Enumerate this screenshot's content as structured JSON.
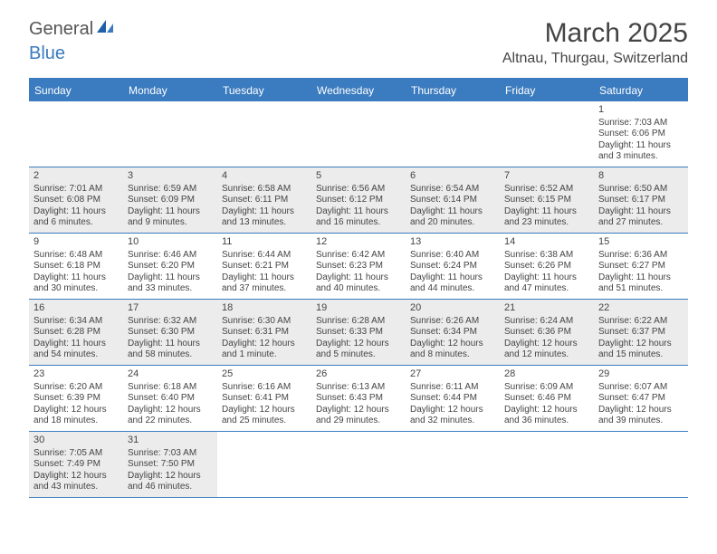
{
  "logo": {
    "general": "General",
    "blue": "Blue"
  },
  "title": "March 2025",
  "location": "Altnau, Thurgau, Switzerland",
  "colors": {
    "accent": "#3b7bbf",
    "shaded": "#ececec",
    "background": "#ffffff",
    "text": "#444444"
  },
  "weekdays": [
    "Sunday",
    "Monday",
    "Tuesday",
    "Wednesday",
    "Thursday",
    "Friday",
    "Saturday"
  ],
  "weeks": [
    [
      {
        "blank": true
      },
      {
        "blank": true
      },
      {
        "blank": true
      },
      {
        "blank": true
      },
      {
        "blank": true
      },
      {
        "blank": true
      },
      {
        "num": "1",
        "sunrise": "Sunrise: 7:03 AM",
        "sunset": "Sunset: 6:06 PM",
        "day1": "Daylight: 11 hours",
        "day2": "and 3 minutes."
      }
    ],
    [
      {
        "num": "2",
        "shaded": true,
        "sunrise": "Sunrise: 7:01 AM",
        "sunset": "Sunset: 6:08 PM",
        "day1": "Daylight: 11 hours",
        "day2": "and 6 minutes."
      },
      {
        "num": "3",
        "shaded": true,
        "sunrise": "Sunrise: 6:59 AM",
        "sunset": "Sunset: 6:09 PM",
        "day1": "Daylight: 11 hours",
        "day2": "and 9 minutes."
      },
      {
        "num": "4",
        "shaded": true,
        "sunrise": "Sunrise: 6:58 AM",
        "sunset": "Sunset: 6:11 PM",
        "day1": "Daylight: 11 hours",
        "day2": "and 13 minutes."
      },
      {
        "num": "5",
        "shaded": true,
        "sunrise": "Sunrise: 6:56 AM",
        "sunset": "Sunset: 6:12 PM",
        "day1": "Daylight: 11 hours",
        "day2": "and 16 minutes."
      },
      {
        "num": "6",
        "shaded": true,
        "sunrise": "Sunrise: 6:54 AM",
        "sunset": "Sunset: 6:14 PM",
        "day1": "Daylight: 11 hours",
        "day2": "and 20 minutes."
      },
      {
        "num": "7",
        "shaded": true,
        "sunrise": "Sunrise: 6:52 AM",
        "sunset": "Sunset: 6:15 PM",
        "day1": "Daylight: 11 hours",
        "day2": "and 23 minutes."
      },
      {
        "num": "8",
        "shaded": true,
        "sunrise": "Sunrise: 6:50 AM",
        "sunset": "Sunset: 6:17 PM",
        "day1": "Daylight: 11 hours",
        "day2": "and 27 minutes."
      }
    ],
    [
      {
        "num": "9",
        "sunrise": "Sunrise: 6:48 AM",
        "sunset": "Sunset: 6:18 PM",
        "day1": "Daylight: 11 hours",
        "day2": "and 30 minutes."
      },
      {
        "num": "10",
        "sunrise": "Sunrise: 6:46 AM",
        "sunset": "Sunset: 6:20 PM",
        "day1": "Daylight: 11 hours",
        "day2": "and 33 minutes."
      },
      {
        "num": "11",
        "sunrise": "Sunrise: 6:44 AM",
        "sunset": "Sunset: 6:21 PM",
        "day1": "Daylight: 11 hours",
        "day2": "and 37 minutes."
      },
      {
        "num": "12",
        "sunrise": "Sunrise: 6:42 AM",
        "sunset": "Sunset: 6:23 PM",
        "day1": "Daylight: 11 hours",
        "day2": "and 40 minutes."
      },
      {
        "num": "13",
        "sunrise": "Sunrise: 6:40 AM",
        "sunset": "Sunset: 6:24 PM",
        "day1": "Daylight: 11 hours",
        "day2": "and 44 minutes."
      },
      {
        "num": "14",
        "sunrise": "Sunrise: 6:38 AM",
        "sunset": "Sunset: 6:26 PM",
        "day1": "Daylight: 11 hours",
        "day2": "and 47 minutes."
      },
      {
        "num": "15",
        "sunrise": "Sunrise: 6:36 AM",
        "sunset": "Sunset: 6:27 PM",
        "day1": "Daylight: 11 hours",
        "day2": "and 51 minutes."
      }
    ],
    [
      {
        "num": "16",
        "shaded": true,
        "sunrise": "Sunrise: 6:34 AM",
        "sunset": "Sunset: 6:28 PM",
        "day1": "Daylight: 11 hours",
        "day2": "and 54 minutes."
      },
      {
        "num": "17",
        "shaded": true,
        "sunrise": "Sunrise: 6:32 AM",
        "sunset": "Sunset: 6:30 PM",
        "day1": "Daylight: 11 hours",
        "day2": "and 58 minutes."
      },
      {
        "num": "18",
        "shaded": true,
        "sunrise": "Sunrise: 6:30 AM",
        "sunset": "Sunset: 6:31 PM",
        "day1": "Daylight: 12 hours",
        "day2": "and 1 minute."
      },
      {
        "num": "19",
        "shaded": true,
        "sunrise": "Sunrise: 6:28 AM",
        "sunset": "Sunset: 6:33 PM",
        "day1": "Daylight: 12 hours",
        "day2": "and 5 minutes."
      },
      {
        "num": "20",
        "shaded": true,
        "sunrise": "Sunrise: 6:26 AM",
        "sunset": "Sunset: 6:34 PM",
        "day1": "Daylight: 12 hours",
        "day2": "and 8 minutes."
      },
      {
        "num": "21",
        "shaded": true,
        "sunrise": "Sunrise: 6:24 AM",
        "sunset": "Sunset: 6:36 PM",
        "day1": "Daylight: 12 hours",
        "day2": "and 12 minutes."
      },
      {
        "num": "22",
        "shaded": true,
        "sunrise": "Sunrise: 6:22 AM",
        "sunset": "Sunset: 6:37 PM",
        "day1": "Daylight: 12 hours",
        "day2": "and 15 minutes."
      }
    ],
    [
      {
        "num": "23",
        "sunrise": "Sunrise: 6:20 AM",
        "sunset": "Sunset: 6:39 PM",
        "day1": "Daylight: 12 hours",
        "day2": "and 18 minutes."
      },
      {
        "num": "24",
        "sunrise": "Sunrise: 6:18 AM",
        "sunset": "Sunset: 6:40 PM",
        "day1": "Daylight: 12 hours",
        "day2": "and 22 minutes."
      },
      {
        "num": "25",
        "sunrise": "Sunrise: 6:16 AM",
        "sunset": "Sunset: 6:41 PM",
        "day1": "Daylight: 12 hours",
        "day2": "and 25 minutes."
      },
      {
        "num": "26",
        "sunrise": "Sunrise: 6:13 AM",
        "sunset": "Sunset: 6:43 PM",
        "day1": "Daylight: 12 hours",
        "day2": "and 29 minutes."
      },
      {
        "num": "27",
        "sunrise": "Sunrise: 6:11 AM",
        "sunset": "Sunset: 6:44 PM",
        "day1": "Daylight: 12 hours",
        "day2": "and 32 minutes."
      },
      {
        "num": "28",
        "sunrise": "Sunrise: 6:09 AM",
        "sunset": "Sunset: 6:46 PM",
        "day1": "Daylight: 12 hours",
        "day2": "and 36 minutes."
      },
      {
        "num": "29",
        "sunrise": "Sunrise: 6:07 AM",
        "sunset": "Sunset: 6:47 PM",
        "day1": "Daylight: 12 hours",
        "day2": "and 39 minutes."
      }
    ],
    [
      {
        "num": "30",
        "shaded": true,
        "sunrise": "Sunrise: 7:05 AM",
        "sunset": "Sunset: 7:49 PM",
        "day1": "Daylight: 12 hours",
        "day2": "and 43 minutes."
      },
      {
        "num": "31",
        "shaded": true,
        "sunrise": "Sunrise: 7:03 AM",
        "sunset": "Sunset: 7:50 PM",
        "day1": "Daylight: 12 hours",
        "day2": "and 46 minutes."
      },
      {
        "blank": true
      },
      {
        "blank": true
      },
      {
        "blank": true
      },
      {
        "blank": true
      },
      {
        "blank": true
      }
    ]
  ]
}
